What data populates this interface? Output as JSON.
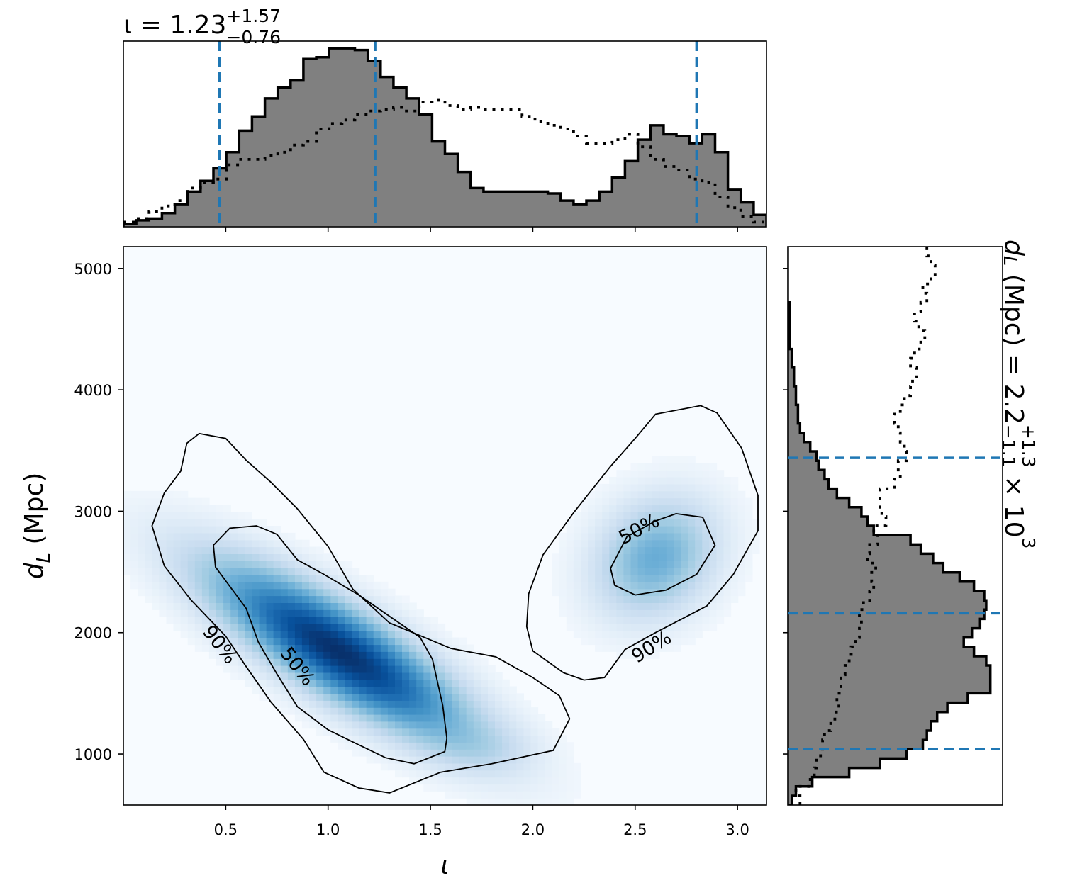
{
  "chart_data": [
    {
      "panel": "joint",
      "type": "heatmap",
      "xlabel": "ι",
      "ylabel_main": "d",
      "ylabel_sub": "L",
      "ylabel_rest": " (Mpc)",
      "xlim": [
        0.0,
        3.14159
      ],
      "ylim": [
        580,
        5180
      ],
      "x_ticks": [
        0.5,
        1.0,
        1.5,
        2.0,
        2.5,
        3.0
      ],
      "x_tick_labels": [
        "0.5",
        "1.0",
        "1.5",
        "2.0",
        "2.5",
        "3.0"
      ],
      "y_ticks": [
        1000,
        2000,
        3000,
        4000,
        5000
      ],
      "y_tick_labels": [
        "1000",
        "2000",
        "3000",
        "4000",
        "5000"
      ],
      "colormap": "Blues",
      "density_modes": [
        {
          "x": 1.05,
          "y": 1850,
          "sx": 0.42,
          "sy": 480,
          "rho": -0.82,
          "weight": 1.0
        },
        {
          "x": 2.6,
          "y": 2620,
          "sx": 0.2,
          "sy": 330,
          "rho": 0.2,
          "weight": 0.45
        },
        {
          "x": 1.75,
          "y": 1050,
          "sx": 0.18,
          "sy": 140,
          "rho": 0.0,
          "weight": 0.08
        }
      ],
      "contours": [
        {
          "label": "90%",
          "level": 0.9,
          "points": [
            [
              0.37,
              3640
            ],
            [
              0.5,
              3600
            ],
            [
              0.6,
              3420
            ],
            [
              0.72,
              3240
            ],
            [
              0.85,
              3020
            ],
            [
              1.0,
              2710
            ],
            [
              1.12,
              2360
            ],
            [
              1.3,
              2080
            ],
            [
              1.6,
              1870
            ],
            [
              1.82,
              1800
            ],
            [
              2.0,
              1630
            ],
            [
              2.13,
              1480
            ],
            [
              2.18,
              1290
            ],
            [
              2.1,
              1030
            ],
            [
              1.8,
              920
            ],
            [
              1.55,
              850
            ],
            [
              1.3,
              680
            ],
            [
              1.15,
              720
            ],
            [
              0.98,
              850
            ],
            [
              0.88,
              1120
            ],
            [
              0.72,
              1430
            ],
            [
              0.6,
              1720
            ],
            [
              0.5,
              1970
            ],
            [
              0.33,
              2270
            ],
            [
              0.2,
              2550
            ],
            [
              0.14,
              2880
            ],
            [
              0.2,
              3150
            ],
            [
              0.28,
              3330
            ],
            [
              0.31,
              3560
            ],
            [
              0.37,
              3640
            ]
          ]
        },
        {
          "label": "50%",
          "level": 0.5,
          "points": [
            [
              0.52,
              2860
            ],
            [
              0.65,
              2880
            ],
            [
              0.75,
              2810
            ],
            [
              0.85,
              2600
            ],
            [
              0.98,
              2480
            ],
            [
              1.15,
              2310
            ],
            [
              1.33,
              2100
            ],
            [
              1.45,
              1960
            ],
            [
              1.51,
              1780
            ],
            [
              1.56,
              1400
            ],
            [
              1.58,
              1130
            ],
            [
              1.57,
              1020
            ],
            [
              1.42,
              920
            ],
            [
              1.28,
              970
            ],
            [
              1.12,
              1100
            ],
            [
              1.0,
              1200
            ],
            [
              0.85,
              1390
            ],
            [
              0.75,
              1660
            ],
            [
              0.66,
              1920
            ],
            [
              0.6,
              2200
            ],
            [
              0.45,
              2540
            ],
            [
              0.44,
              2720
            ],
            [
              0.52,
              2860
            ]
          ]
        },
        {
          "label": "90%",
          "level": 0.9,
          "points": [
            [
              2.82,
              3870
            ],
            [
              2.9,
              3810
            ],
            [
              3.02,
              3520
            ],
            [
              3.1,
              3130
            ],
            [
              3.1,
              2840
            ],
            [
              2.98,
              2480
            ],
            [
              2.85,
              2220
            ],
            [
              2.6,
              2000
            ],
            [
              2.45,
              1860
            ],
            [
              2.35,
              1630
            ],
            [
              2.25,
              1610
            ],
            [
              2.15,
              1670
            ],
            [
              2.0,
              1850
            ],
            [
              1.97,
              2050
            ],
            [
              1.98,
              2320
            ],
            [
              2.05,
              2640
            ],
            [
              2.2,
              2990
            ],
            [
              2.38,
              3370
            ],
            [
              2.5,
              3600
            ],
            [
              2.6,
              3800
            ],
            [
              2.82,
              3870
            ]
          ]
        },
        {
          "label": "50%",
          "level": 0.5,
          "points": [
            [
              2.46,
              2790
            ],
            [
              2.6,
              2920
            ],
            [
              2.7,
              2980
            ],
            [
              2.83,
              2950
            ],
            [
              2.89,
              2720
            ],
            [
              2.8,
              2480
            ],
            [
              2.65,
              2350
            ],
            [
              2.5,
              2310
            ],
            [
              2.4,
              2390
            ],
            [
              2.38,
              2530
            ],
            [
              2.46,
              2790
            ]
          ]
        }
      ],
      "contour_labels": [
        {
          "text": "50%",
          "x": 2.52,
          "y": 2850,
          "rotation": -28
        },
        {
          "text": "90%",
          "x": 0.47,
          "y": 1900,
          "rotation": 52
        },
        {
          "text": "50%",
          "x": 0.85,
          "y": 1720,
          "rotation": 52
        },
        {
          "text": "90%",
          "x": 2.58,
          "y": 1880,
          "rotation": -32
        }
      ]
    },
    {
      "panel": "top-marginal",
      "type": "step-histogram",
      "title_main": "ι = 1.23",
      "title_sup": "+1.57",
      "title_sub": "−0.76",
      "bin_edges": [
        0.0,
        0.0628,
        0.1257,
        0.1885,
        0.2513,
        0.3142,
        0.377,
        0.4398,
        0.5027,
        0.5655,
        0.6283,
        0.6912,
        0.754,
        0.8168,
        0.8796,
        0.9425,
        1.0053,
        1.0681,
        1.131,
        1.1938,
        1.2566,
        1.3195,
        1.3823,
        1.4451,
        1.508,
        1.5708,
        1.6336,
        1.6965,
        1.7593,
        1.8221,
        1.885,
        1.9478,
        2.0106,
        2.0735,
        2.1363,
        2.1991,
        2.2619,
        2.3248,
        2.3876,
        2.4504,
        2.5133,
        2.5761,
        2.6389,
        2.7018,
        2.7646,
        2.8274,
        2.8903,
        2.9531,
        3.0159,
        3.0788,
        3.1416
      ],
      "posterior": [
        0.02,
        0.04,
        0.05,
        0.08,
        0.13,
        0.2,
        0.26,
        0.33,
        0.42,
        0.54,
        0.62,
        0.72,
        0.78,
        0.82,
        0.94,
        0.95,
        1.0,
        1.0,
        0.99,
        0.93,
        0.84,
        0.78,
        0.72,
        0.63,
        0.48,
        0.41,
        0.31,
        0.22,
        0.2,
        0.2,
        0.2,
        0.2,
        0.2,
        0.19,
        0.15,
        0.13,
        0.15,
        0.2,
        0.28,
        0.37,
        0.49,
        0.57,
        0.52,
        0.51,
        0.47,
        0.52,
        0.42,
        0.21,
        0.14,
        0.07
      ],
      "prior": [
        0.03,
        0.05,
        0.09,
        0.12,
        0.15,
        0.22,
        0.25,
        0.27,
        0.35,
        0.38,
        0.38,
        0.4,
        0.42,
        0.46,
        0.48,
        0.55,
        0.58,
        0.6,
        0.63,
        0.65,
        0.66,
        0.67,
        0.65,
        0.7,
        0.71,
        0.68,
        0.66,
        0.67,
        0.66,
        0.66,
        0.66,
        0.62,
        0.59,
        0.57,
        0.55,
        0.51,
        0.47,
        0.47,
        0.49,
        0.52,
        0.45,
        0.38,
        0.34,
        0.32,
        0.27,
        0.25,
        0.17,
        0.11,
        0.06,
        0.03
      ],
      "credible_lines": [
        0.47,
        1.23,
        2.8
      ],
      "ymax": 1.04
    },
    {
      "panel": "right-marginal",
      "type": "step-histogram",
      "label_main": "d",
      "label_sub": "L",
      "label_rest": " (Mpc) = 2.2",
      "label_sup": "+1.3",
      "label_sub2": "−1.1",
      "label_tail": " × 10",
      "label_exp": "3",
      "bin_edges": [
        580,
        656,
        733,
        810,
        886,
        963,
        1040,
        1116,
        1193,
        1270,
        1346,
        1423,
        1500,
        1576,
        1653,
        1730,
        1806,
        1883,
        1960,
        2036,
        2113,
        2190,
        2266,
        2343,
        2420,
        2496,
        2573,
        2650,
        2726,
        2803,
        2880,
        2956,
        3033,
        3110,
        3186,
        3263,
        3340,
        3416,
        3493,
        3570,
        3646,
        3723,
        3800,
        3876,
        3953,
        4030,
        4106,
        4183,
        4260,
        4336,
        4413,
        4490,
        4566,
        4643,
        4720,
        4796,
        4873,
        4950,
        5026,
        5103,
        5180
      ],
      "posterior": [
        0.02,
        0.04,
        0.12,
        0.3,
        0.45,
        0.58,
        0.66,
        0.68,
        0.7,
        0.73,
        0.78,
        0.88,
        0.99,
        0.99,
        0.99,
        0.97,
        0.91,
        0.86,
        0.9,
        0.94,
        0.96,
        0.97,
        0.96,
        0.91,
        0.84,
        0.76,
        0.71,
        0.65,
        0.6,
        0.42,
        0.39,
        0.36,
        0.3,
        0.24,
        0.2,
        0.18,
        0.15,
        0.14,
        0.11,
        0.08,
        0.06,
        0.05,
        0.05,
        0.04,
        0.04,
        0.03,
        0.03,
        0.02,
        0.02,
        0.01,
        0.01,
        0.01,
        0.01,
        0.01,
        0.0,
        0.0,
        0.0,
        0.0,
        0.0,
        0.0
      ],
      "prior": [
        0.06,
        0.04,
        0.11,
        0.13,
        0.14,
        0.16,
        0.17,
        0.18,
        0.21,
        0.23,
        0.25,
        0.24,
        0.26,
        0.26,
        0.28,
        0.3,
        0.31,
        0.33,
        0.35,
        0.36,
        0.35,
        0.37,
        0.4,
        0.42,
        0.41,
        0.43,
        0.39,
        0.4,
        0.44,
        0.42,
        0.48,
        0.46,
        0.45,
        0.45,
        0.52,
        0.55,
        0.54,
        0.58,
        0.57,
        0.55,
        0.54,
        0.52,
        0.55,
        0.57,
        0.6,
        0.61,
        0.63,
        0.6,
        0.62,
        0.65,
        0.67,
        0.64,
        0.62,
        0.65,
        0.68,
        0.66,
        0.7,
        0.72,
        0.7,
        0.68
      ],
      "credible_lines": [
        1040,
        2160,
        3440
      ],
      "xmax": 1.05
    }
  ]
}
